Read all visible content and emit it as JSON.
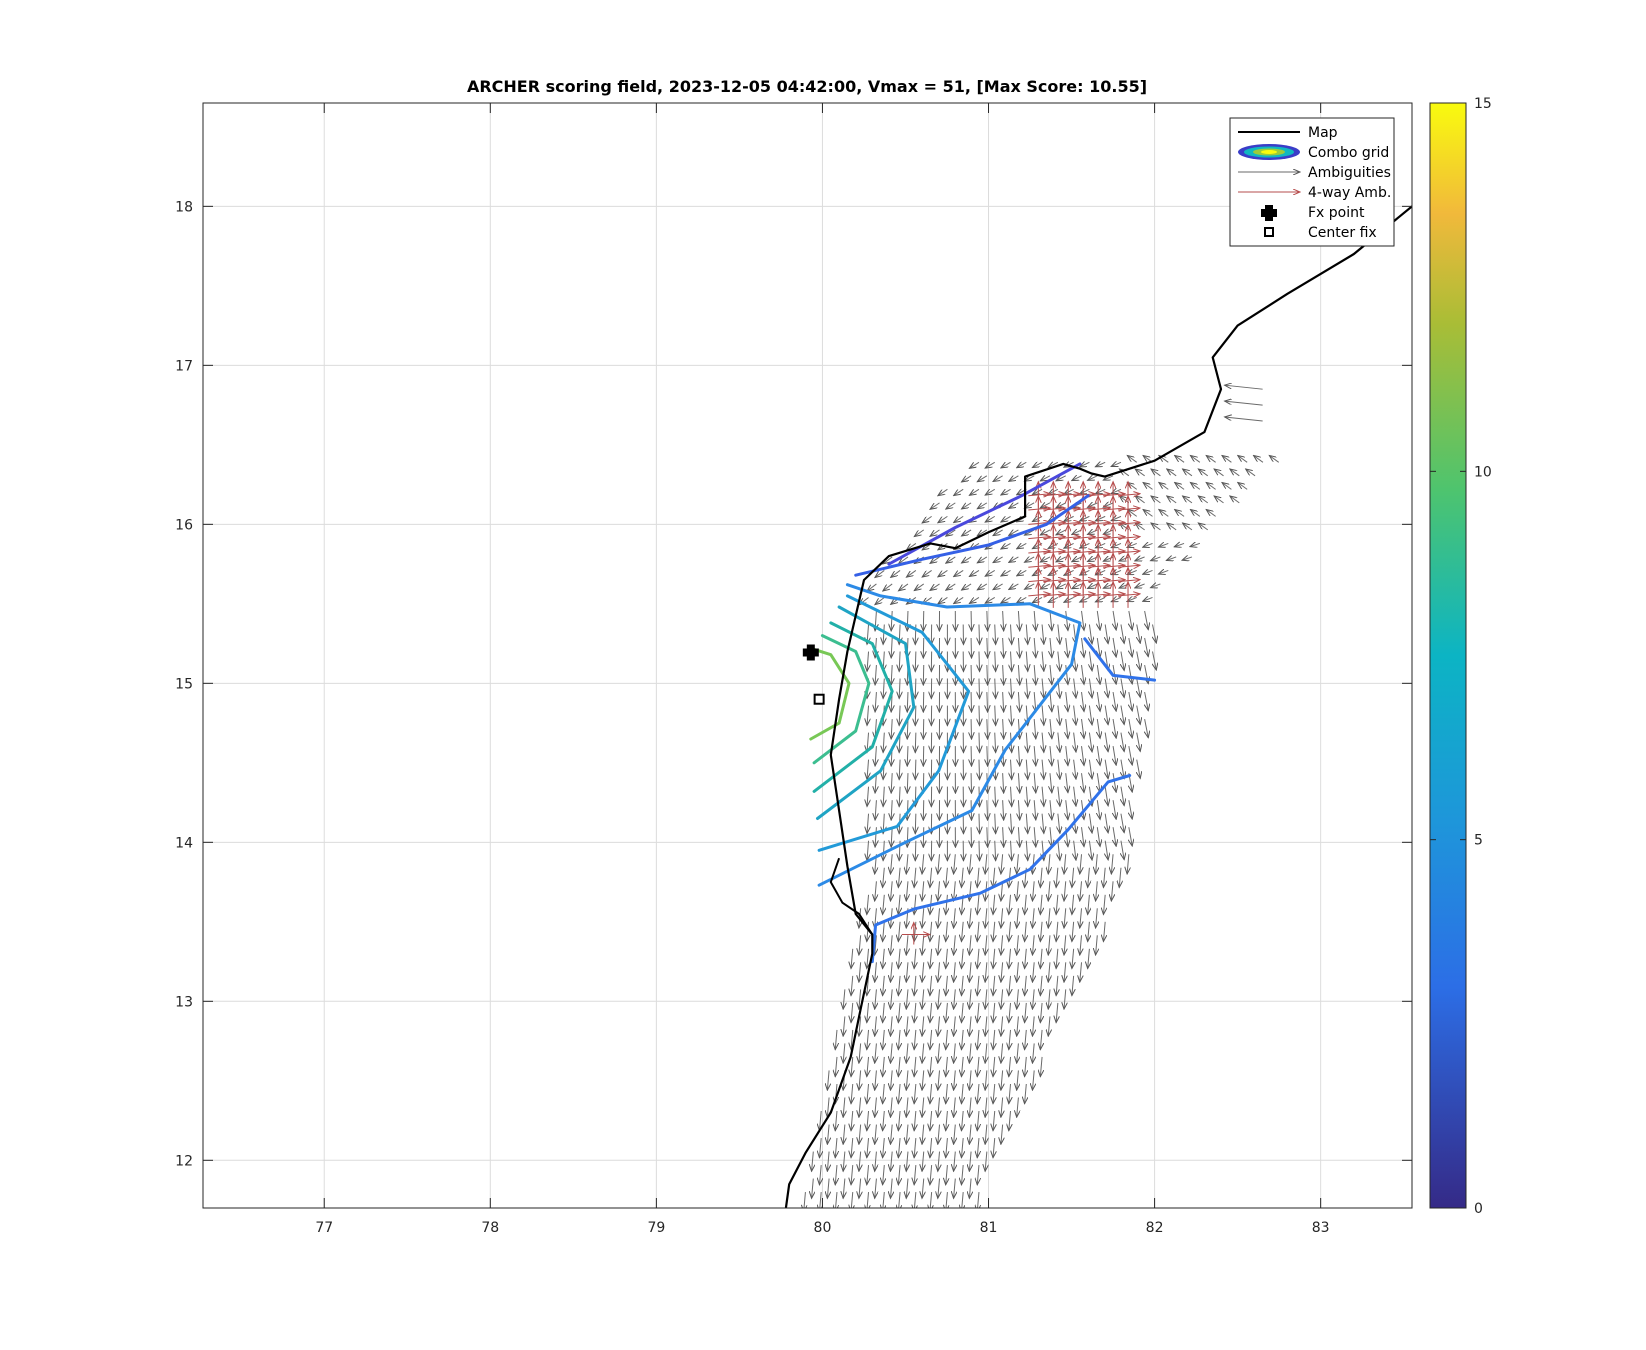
{
  "chart_data": {
    "type": "contour-map",
    "title": "ARCHER scoring field, 2023-12-05 04:42:00, Vmax = 51, [Max Score: 10.55]",
    "xlim": [
      76.27,
      83.55
    ],
    "ylim": [
      11.7,
      18.65
    ],
    "xticks": [
      "77",
      "78",
      "79",
      "80",
      "81",
      "82",
      "83"
    ],
    "yticks": [
      "12",
      "13",
      "14",
      "15",
      "16",
      "17",
      "18"
    ],
    "grid": true,
    "colorbar": {
      "min": 0,
      "max": 15,
      "ticks": [
        "0",
        "5",
        "10",
        "15"
      ],
      "colormap": "parula"
    },
    "legend": {
      "position": "top-right",
      "items": [
        {
          "label": "Map",
          "style": "black-line"
        },
        {
          "label": "Combo grid",
          "style": "contour-ellipse"
        },
        {
          "label": "Ambiguities",
          "style": "gray-arrow"
        },
        {
          "label": "4-way Amb.",
          "style": "red-arrow"
        },
        {
          "label": "Fx point",
          "style": "black-plus"
        },
        {
          "label": "Center fix",
          "style": "black-square"
        }
      ]
    },
    "fx_point": {
      "lon": 79.93,
      "lat": 15.2
    },
    "center_fix": {
      "lon": 79.98,
      "lat": 14.9
    },
    "coastline": [
      [
        79.78,
        11.7
      ],
      [
        79.8,
        11.85
      ],
      [
        79.9,
        12.05
      ],
      [
        80.05,
        12.3
      ],
      [
        80.17,
        12.65
      ],
      [
        80.23,
        12.95
      ],
      [
        80.3,
        13.3
      ],
      [
        80.3,
        13.42
      ],
      [
        80.2,
        13.55
      ],
      [
        80.15,
        13.85
      ],
      [
        80.1,
        14.2
      ],
      [
        80.05,
        14.55
      ],
      [
        80.1,
        14.9
      ],
      [
        80.15,
        15.2
      ],
      [
        80.25,
        15.65
      ],
      [
        80.4,
        15.8
      ],
      [
        80.65,
        15.88
      ],
      [
        80.8,
        15.85
      ],
      [
        81.0,
        15.95
      ],
      [
        81.22,
        16.05
      ],
      [
        81.22,
        16.3
      ],
      [
        81.45,
        16.38
      ],
      [
        81.55,
        16.35
      ],
      [
        81.62,
        16.32
      ],
      [
        81.7,
        16.3
      ],
      [
        82.0,
        16.4
      ],
      [
        82.3,
        16.58
      ],
      [
        82.4,
        16.85
      ],
      [
        82.35,
        17.05
      ],
      [
        82.5,
        17.25
      ],
      [
        82.8,
        17.45
      ],
      [
        83.2,
        17.7
      ],
      [
        83.55,
        18.0
      ]
    ],
    "contours": [
      {
        "level": 9.5,
        "color": "#78c856",
        "points": [
          [
            79.93,
            14.65
          ],
          [
            80.1,
            14.75
          ],
          [
            80.16,
            15.0
          ],
          [
            80.05,
            15.18
          ],
          [
            79.93,
            15.22
          ]
        ]
      },
      {
        "level": 8.5,
        "color": "#3cbe90",
        "points": [
          [
            79.95,
            14.5
          ],
          [
            80.2,
            14.7
          ],
          [
            80.28,
            15.0
          ],
          [
            80.2,
            15.2
          ],
          [
            80.0,
            15.3
          ]
        ]
      },
      {
        "level": 7.5,
        "color": "#22b0a8",
        "points": [
          [
            79.95,
            14.32
          ],
          [
            80.3,
            14.6
          ],
          [
            80.42,
            14.95
          ],
          [
            80.3,
            15.25
          ],
          [
            80.05,
            15.38
          ]
        ]
      },
      {
        "level": 6.5,
        "color": "#1fa4c4",
        "points": [
          [
            79.97,
            14.15
          ],
          [
            80.35,
            14.45
          ],
          [
            80.55,
            14.85
          ],
          [
            80.5,
            15.25
          ],
          [
            80.1,
            15.48
          ]
        ]
      },
      {
        "level": 5.5,
        "color": "#229ad8",
        "points": [
          [
            79.98,
            13.95
          ],
          [
            80.45,
            14.1
          ],
          [
            80.7,
            14.45
          ],
          [
            80.88,
            14.95
          ],
          [
            80.6,
            15.32
          ],
          [
            80.15,
            15.55
          ]
        ]
      },
      {
        "level": 5.0,
        "color": "#2c8ae6",
        "points": [
          [
            79.98,
            13.73
          ],
          [
            80.5,
            14.0
          ],
          [
            80.9,
            14.2
          ],
          [
            81.1,
            14.58
          ],
          [
            81.5,
            15.12
          ],
          [
            81.55,
            15.38
          ],
          [
            81.25,
            15.5
          ],
          [
            80.75,
            15.48
          ],
          [
            80.35,
            15.55
          ],
          [
            80.15,
            15.62
          ]
        ]
      },
      {
        "level": 4.5,
        "color": "#3072ea",
        "points": [
          [
            80.3,
            13.25
          ],
          [
            80.32,
            13.48
          ],
          [
            80.55,
            13.58
          ],
          [
            80.95,
            13.68
          ],
          [
            81.25,
            13.83
          ],
          [
            81.48,
            14.08
          ],
          [
            81.72,
            14.38
          ],
          [
            81.85,
            14.42
          ]
        ]
      },
      {
        "level": 4.5,
        "color": "#3072ea",
        "points": [
          [
            81.58,
            15.28
          ],
          [
            81.75,
            15.05
          ],
          [
            82.0,
            15.02
          ]
        ]
      },
      {
        "level": 4.0,
        "color": "#3560e6",
        "points": [
          [
            80.2,
            15.68
          ],
          [
            80.6,
            15.78
          ],
          [
            81.0,
            15.87
          ],
          [
            81.35,
            16.0
          ],
          [
            81.6,
            16.18
          ]
        ]
      },
      {
        "level": 3.5,
        "color": "#4a48dc",
        "points": [
          [
            80.4,
            15.75
          ],
          [
            80.8,
            15.98
          ],
          [
            81.2,
            16.18
          ],
          [
            81.55,
            16.38
          ]
        ]
      }
    ]
  }
}
